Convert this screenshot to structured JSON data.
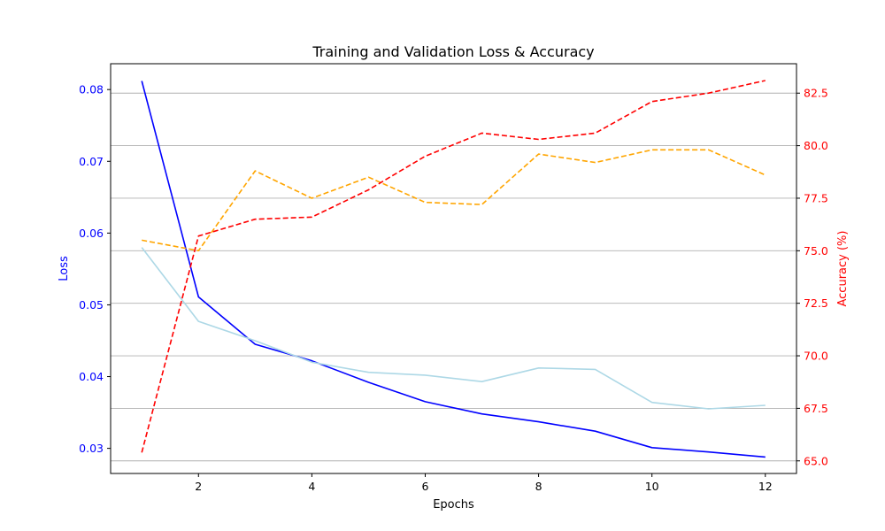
{
  "chart_data": {
    "type": "line",
    "title": "Training and Validation Loss & Accuracy",
    "xlabel": "Epochs",
    "ylabel_left": "Loss",
    "ylabel_right": "Accuracy (%)",
    "x": [
      1,
      2,
      3,
      4,
      5,
      6,
      7,
      8,
      9,
      10,
      11,
      12
    ],
    "xlim": [
      0.45,
      12.55
    ],
    "xticks": [
      2,
      4,
      6,
      8,
      10,
      12
    ],
    "ylim_left": [
      0.0265,
      0.0836
    ],
    "yticks_left": [
      0.03,
      0.04,
      0.05,
      0.06,
      0.07,
      0.08
    ],
    "ylim_right": [
      64.4,
      83.9
    ],
    "yticks_right": [
      65.0,
      67.5,
      70.0,
      72.5,
      75.0,
      77.5,
      80.0,
      82.5
    ],
    "grid": "horizontal, right axis",
    "legend": "none",
    "colors": {
      "left_axis": "#0000ff",
      "right_axis": "#ff0000",
      "grid": "#b0b0b0"
    },
    "series": [
      {
        "axis": "left",
        "color": "#0000ff",
        "style": "solid",
        "values": [
          0.0812,
          0.0511,
          0.0445,
          0.0422,
          0.0392,
          0.0365,
          0.0348,
          0.0337,
          0.0324,
          0.0301,
          0.0295,
          0.0288
        ]
      },
      {
        "axis": "left",
        "color": "#add8e6",
        "style": "solid",
        "values": [
          0.058,
          0.0477,
          0.045,
          0.042,
          0.0406,
          0.0402,
          0.0393,
          0.0412,
          0.041,
          0.0364,
          0.0355,
          0.036
        ]
      },
      {
        "axis": "right",
        "color": "#ffa500",
        "style": "dashed",
        "values": [
          75.5,
          75.0,
          78.8,
          77.5,
          78.5,
          77.3,
          77.2,
          79.6,
          79.2,
          79.8,
          79.8,
          78.6
        ]
      },
      {
        "axis": "right",
        "color": "#ff0000",
        "style": "dashed",
        "values": [
          65.4,
          75.7,
          76.5,
          76.6,
          77.9,
          79.5,
          80.6,
          80.3,
          80.6,
          82.1,
          82.5,
          83.1
        ]
      }
    ]
  }
}
